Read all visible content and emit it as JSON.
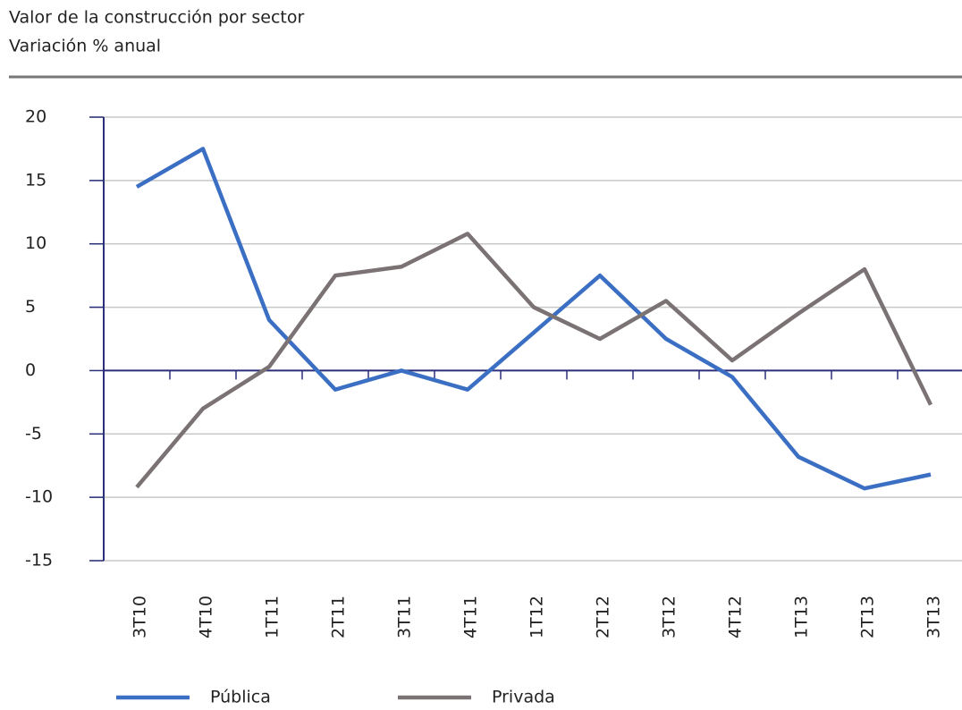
{
  "chart_data": {
    "type": "line",
    "title": "Valor de la construcción por sector",
    "subtitle": "Variación % anual",
    "categories": [
      "3T10",
      "4T10",
      "1T11",
      "2T11",
      "3T11",
      "4T11",
      "1T12",
      "2T12",
      "3T12",
      "4T12",
      "1T13",
      "2T13",
      "3T13"
    ],
    "series": [
      {
        "name": "Pública",
        "color": "#3b6fc3",
        "values": [
          14.5,
          17.5,
          4,
          -1.5,
          0,
          -1.5,
          3,
          7.5,
          2.5,
          -0.5,
          -6.8,
          -9.3,
          -8.2
        ]
      },
      {
        "name": "Privada",
        "color": "#7b7274",
        "values": [
          -9.2,
          -3,
          0.3,
          7.5,
          8.2,
          10.8,
          5,
          2.5,
          5.5,
          0.8,
          4.5,
          8,
          -2.7
        ]
      }
    ],
    "ylim": [
      -15,
      20
    ],
    "yticks": [
      -15,
      -10,
      -5,
      0,
      5,
      10,
      15,
      20
    ],
    "grid": true,
    "legend": "bottom"
  }
}
